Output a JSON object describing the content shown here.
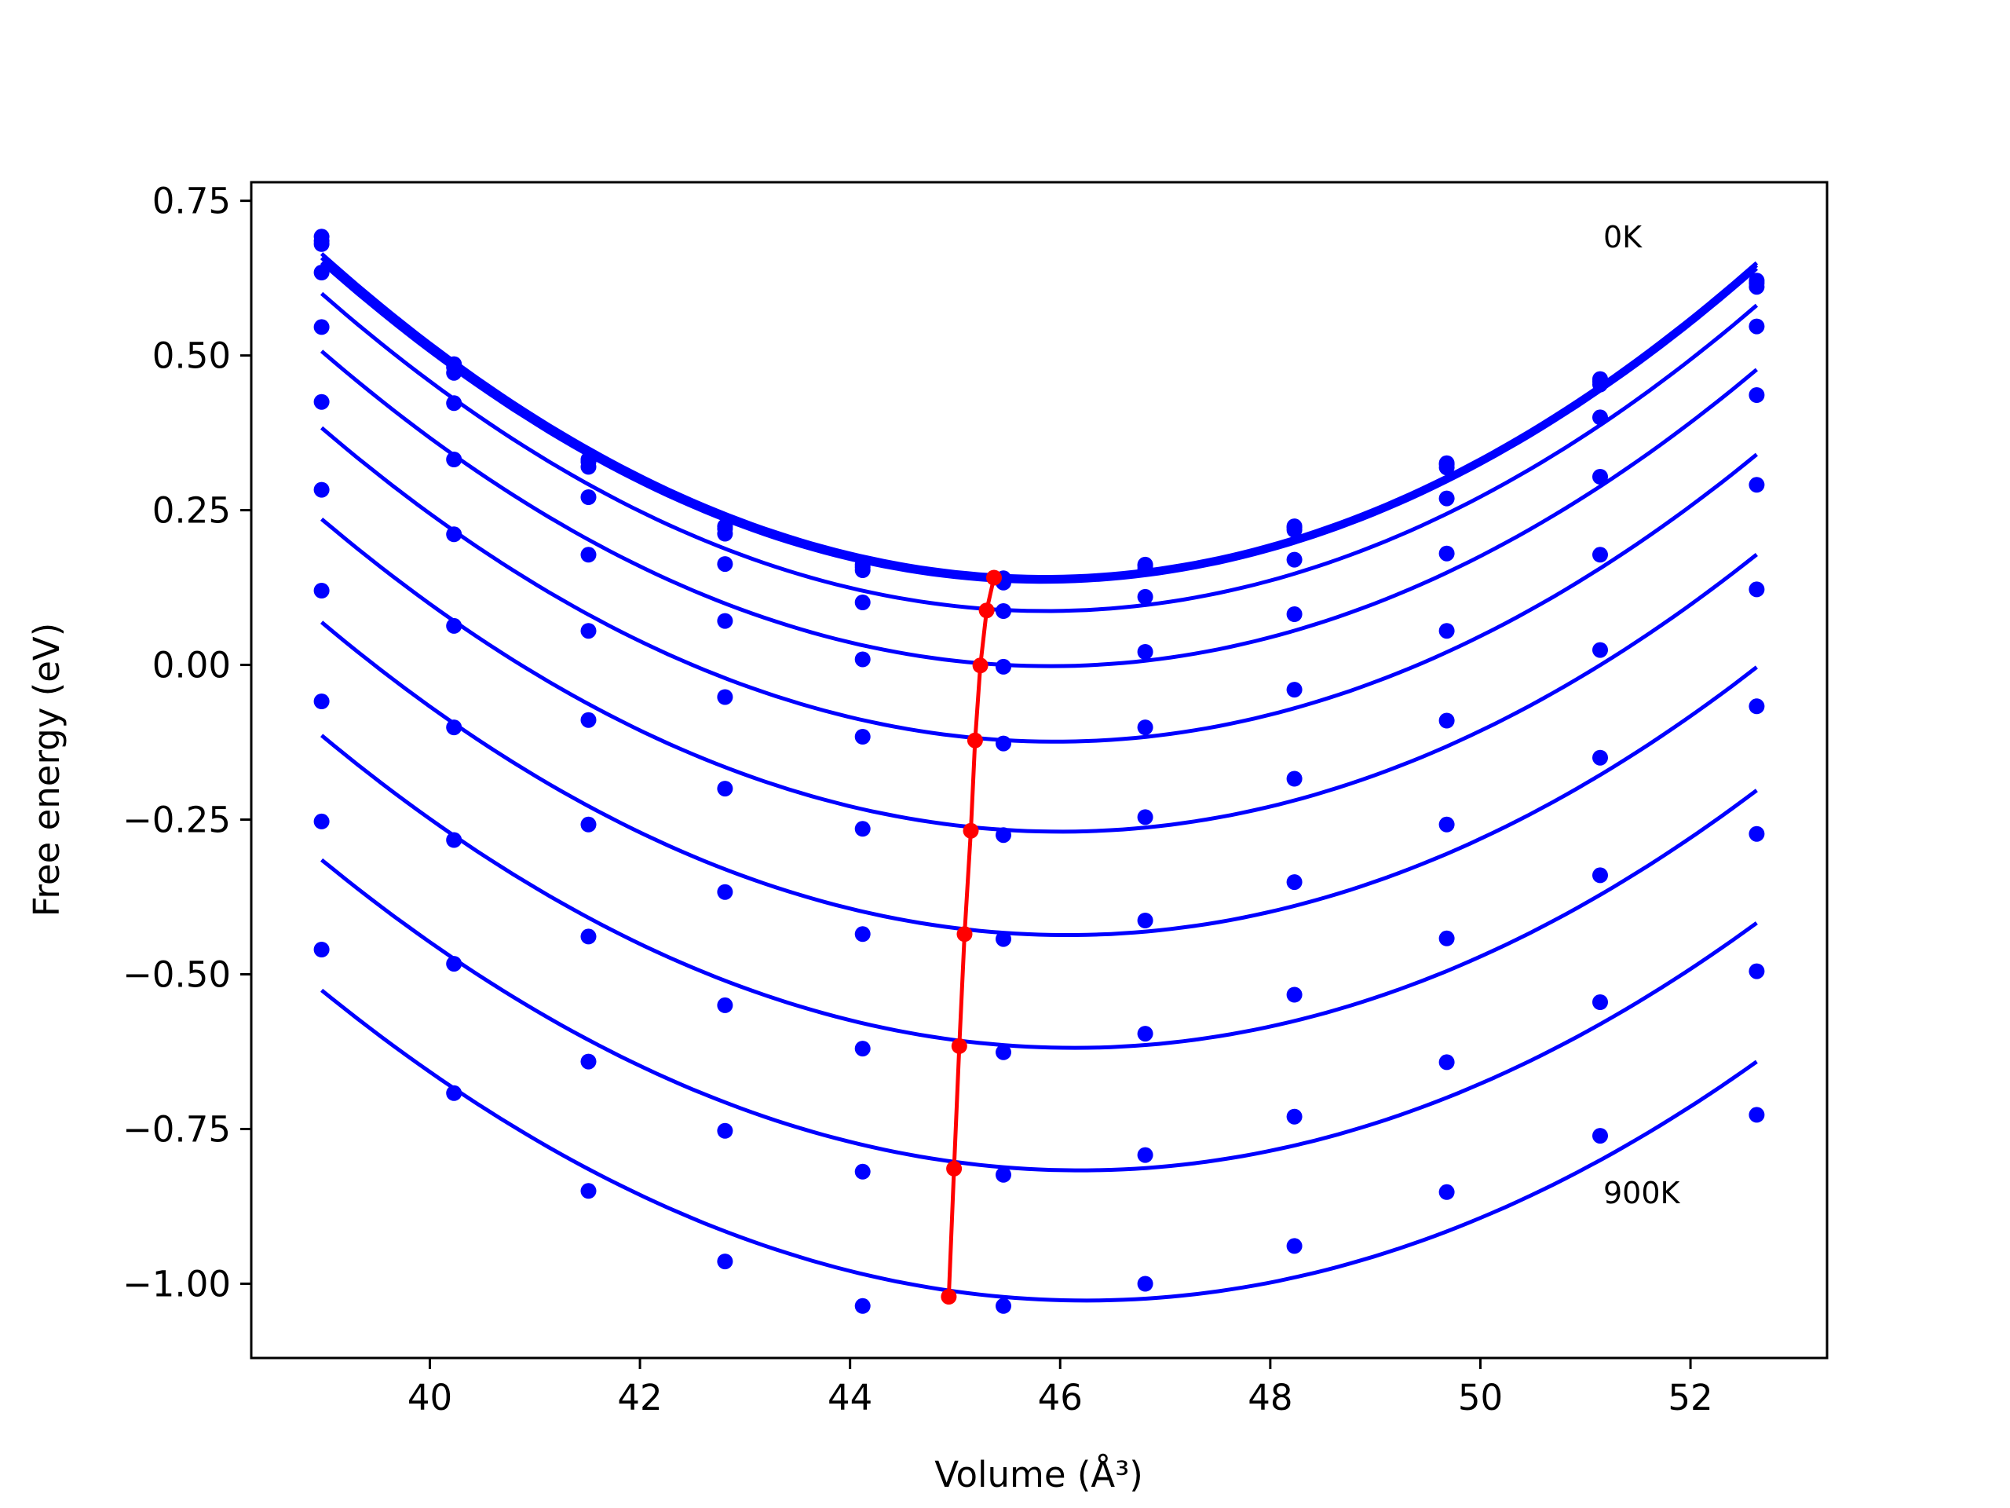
{
  "chart_data": {
    "type": "line",
    "title": "",
    "xlabel": "Volume (Å³)",
    "ylabel": "Free energy (eV)",
    "xlim": [
      38.3,
      53.3
    ],
    "ylim": [
      -1.12,
      0.78
    ],
    "x_ticks": [
      40,
      42,
      44,
      46,
      48,
      50,
      52
    ],
    "x_tick_labels": [
      "40",
      "42",
      "44",
      "46",
      "48",
      "50",
      "52"
    ],
    "y_ticks": [
      0.75,
      0.5,
      0.25,
      0.0,
      -0.25,
      -0.5,
      -0.75,
      -1.0
    ],
    "y_tick_labels": [
      "0.75",
      "0.50",
      "0.25",
      "0.00",
      "−0.25",
      "−0.50",
      "−0.75",
      "−1.00"
    ],
    "grid": false,
    "x": [
      38.97,
      40.23,
      41.51,
      42.81,
      44.12,
      45.46,
      46.81,
      48.23,
      49.68,
      51.14,
      52.63
    ],
    "series": [
      {
        "label_text": "0K",
        "points": [
          0.692,
          0.486,
          0.332,
          0.224,
          0.162,
          0.14,
          0.162,
          0.224,
          0.326,
          0.462,
          0.621
        ],
        "color": "#0000ff"
      },
      {
        "points": [
          0.685,
          0.481,
          0.328,
          0.22,
          0.158,
          0.137,
          0.16,
          0.222,
          0.324,
          0.458,
          0.617
        ],
        "color": "#0000ff"
      },
      {
        "points": [
          0.68,
          0.472,
          0.32,
          0.212,
          0.153,
          0.133,
          0.155,
          0.218,
          0.319,
          0.453,
          0.611
        ],
        "color": "#0000ff"
      },
      {
        "points": [
          0.634,
          0.423,
          0.271,
          0.163,
          0.101,
          0.087,
          0.11,
          0.17,
          0.269,
          0.4,
          0.547
        ],
        "color": "#0000ff"
      },
      {
        "points": [
          0.546,
          0.332,
          0.178,
          0.071,
          0.009,
          -0.003,
          0.021,
          0.082,
          0.18,
          0.304,
          0.436
        ],
        "color": "#0000ff"
      },
      {
        "points": [
          0.425,
          0.211,
          0.055,
          -0.052,
          -0.116,
          -0.127,
          -0.101,
          -0.04,
          0.055,
          0.178,
          0.291
        ],
        "color": "#0000ff"
      },
      {
        "points": [
          0.283,
          0.063,
          -0.089,
          -0.2,
          -0.265,
          -0.275,
          -0.246,
          -0.184,
          -0.09,
          0.024,
          0.122
        ],
        "color": "#0000ff"
      },
      {
        "points": [
          0.12,
          -0.101,
          -0.258,
          -0.367,
          -0.435,
          -0.443,
          -0.413,
          -0.351,
          -0.258,
          -0.15,
          -0.067
        ],
        "color": "#0000ff"
      },
      {
        "points": [
          -0.059,
          -0.283,
          -0.439,
          -0.55,
          -0.62,
          -0.626,
          -0.596,
          -0.533,
          -0.442,
          -0.34,
          -0.273
        ],
        "color": "#0000ff"
      },
      {
        "points": [
          -0.253,
          -0.483,
          -0.641,
          -0.753,
          -0.819,
          -0.824,
          -0.792,
          -0.73,
          -0.642,
          -0.545,
          -0.495
        ],
        "color": "#0000ff"
      },
      {
        "label_text": "900K",
        "points": [
          -0.46,
          -0.692,
          -0.85,
          -0.964,
          -1.036,
          -1.036,
          -1.0,
          -0.939,
          -0.852,
          -0.761,
          -0.727
        ],
        "color": "#0000ff"
      }
    ],
    "minima_series": {
      "color": "#ff0000",
      "x": [
        45.37,
        45.3,
        45.24,
        45.19,
        45.15,
        45.09,
        45.04,
        44.99,
        44.94
      ],
      "y": [
        0.141,
        0.088,
        -0.001,
        -0.122,
        -0.268,
        -0.435,
        -0.616,
        -0.814,
        -1.021
      ]
    }
  }
}
